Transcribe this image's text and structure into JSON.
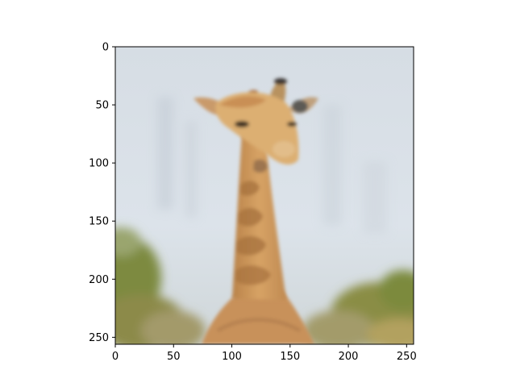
{
  "chart_data": {
    "type": "image",
    "subject": "giraffe",
    "x_ticks": [
      0,
      50,
      100,
      150,
      200,
      250
    ],
    "y_ticks": [
      0,
      50,
      100,
      150,
      200,
      250
    ],
    "xlim": [
      0,
      256
    ],
    "ylim": [
      256,
      0
    ],
    "y_inverted": true,
    "grid": false,
    "colors": {
      "sky": "#d3dbe3",
      "fur": "#d59f64",
      "patch": "#ad7846",
      "foliage": "#7e8c44"
    }
  }
}
